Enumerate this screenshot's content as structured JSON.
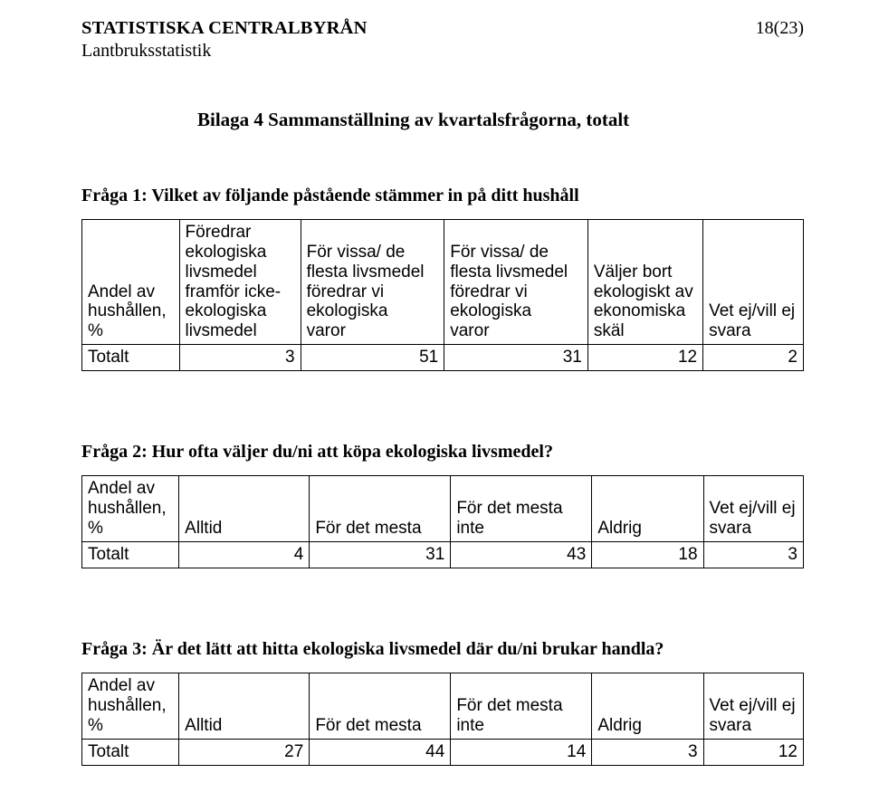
{
  "header": {
    "org": "STATISTISKA CENTRALBYRÅN",
    "page": "18(23)",
    "sub": "Lantbruksstatistik"
  },
  "appendix_title": "Bilaga 4 Sammanställning av kvartalsfrågorna, totalt",
  "q1": {
    "title": "Fråga 1: Vilket av följande påstående stämmer in på ditt hushåll",
    "headers": {
      "c0a": "Andel av",
      "c0b": "hushållen,",
      "c0c": "%",
      "c1a": "Föredrar",
      "c1b": "ekologiska",
      "c1c": "livsmedel",
      "c1d": "framför icke-",
      "c1e": "ekologiska",
      "c1f": "livsmedel",
      "c2a": "För vissa/ de",
      "c2b": "flesta livsmedel",
      "c2c": "föredrar vi",
      "c2d": "ekologiska",
      "c2e": "varor",
      "c3a": "För vissa/ de",
      "c3b": "flesta livsmedel",
      "c3c": "föredrar vi",
      "c3d": "ekologiska",
      "c3e": "varor",
      "c4a": "Väljer bort",
      "c4b": "ekologiskt av",
      "c4c": "ekonomiska",
      "c4d": "skäl",
      "c5a": "Vet ej/vill ej",
      "c5b": "svara"
    },
    "row_label": "Totalt",
    "values": [
      "3",
      "51",
      "31",
      "12",
      "2"
    ]
  },
  "q2": {
    "title": "Fråga 2: Hur ofta väljer du/ni att köpa ekologiska livsmedel?",
    "headers": {
      "c0a": "Andel av",
      "c0b": "hushållen,",
      "c0c": "%",
      "c1": "Alltid",
      "c2": "För det mesta",
      "c3a": "För det mesta",
      "c3b": "inte",
      "c4": "Aldrig",
      "c5a": "Vet ej/vill ej",
      "c5b": "svara"
    },
    "row_label": "Totalt",
    "values": [
      "4",
      "31",
      "43",
      "18",
      "3"
    ]
  },
  "q3": {
    "title": "Fråga 3: Är det lätt att hitta ekologiska livsmedel där du/ni brukar handla?",
    "headers": {
      "c0a": "Andel av",
      "c0b": "hushållen,",
      "c0c": "%",
      "c1": "Alltid",
      "c2": "För det mesta",
      "c3a": "För det mesta",
      "c3b": "inte",
      "c4": "Aldrig",
      "c5a": "Vet ej/vill ej",
      "c5b": "svara"
    },
    "row_label": "Totalt",
    "values": [
      "27",
      "44",
      "14",
      "3",
      "12"
    ]
  }
}
